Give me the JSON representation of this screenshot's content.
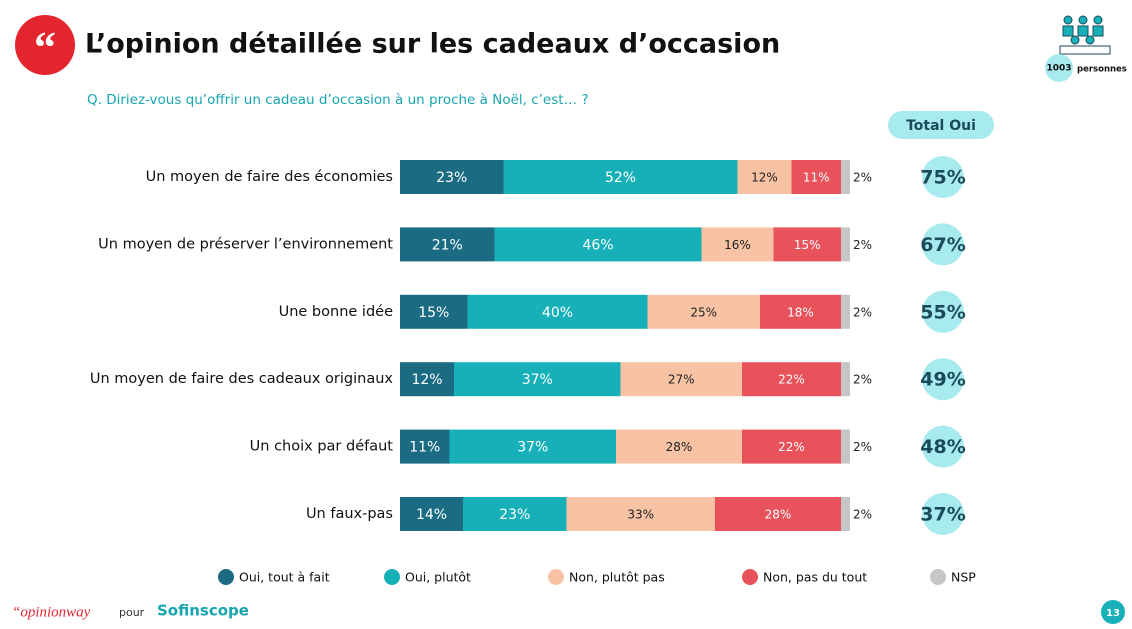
{
  "chart_data": {
    "type": "stacked-bar-horizontal",
    "title": "L’opinion détaillée sur les cadeaux d’occasion",
    "subtitle": "Q. Diriez-vous qu’offrir un cadeau d’occasion à un proche à Noël, c’est… ?",
    "categories": [
      "Un moyen de faire des économies",
      "Un moyen de préserver l’environnement",
      "Une bonne idée",
      "Un moyen de faire des cadeaux originaux",
      "Un choix par défaut",
      "Un faux-pas"
    ],
    "xlim": [
      0,
      100
    ],
    "series": [
      {
        "name": "Oui, tout à fait",
        "color": "#1b6b82",
        "values": [
          23,
          21,
          15,
          12,
          11,
          14
        ],
        "value_labels": [
          "23%",
          "21%",
          "15%",
          "12%",
          "11%",
          "14%"
        ]
      },
      {
        "name": "Oui, plutôt",
        "color": "#17b0b9",
        "values": [
          52,
          46,
          40,
          37,
          37,
          23
        ],
        "value_labels": [
          "52%",
          "46%",
          "40%",
          "37%",
          "37%",
          "23%"
        ]
      },
      {
        "name": "Non, plutôt pas",
        "color": "#f8c3a5",
        "values": [
          12,
          16,
          25,
          27,
          28,
          33
        ],
        "value_labels": [
          "12%",
          "16%",
          "25%",
          "27%",
          "28%",
          "33%"
        ]
      },
      {
        "name": "Non, pas du tout",
        "color": "#e8525b",
        "values": [
          11,
          15,
          18,
          22,
          22,
          28
        ],
        "value_labels": [
          "11%",
          "15%",
          "18%",
          "22%",
          "22%",
          "28%"
        ]
      },
      {
        "name": "NSP",
        "color": "#c6c6c6",
        "values": [
          2,
          2,
          2,
          2,
          2,
          2
        ],
        "value_labels": [
          "2%",
          "2%",
          "2%",
          "2%",
          "2%",
          "2%"
        ]
      }
    ],
    "total": {
      "label": "Total Oui",
      "values": [
        75,
        67,
        55,
        49,
        48,
        37
      ],
      "value_labels": [
        "75%",
        "67%",
        "55%",
        "49%",
        "48%",
        "37%"
      ]
    },
    "legend": "bottom"
  },
  "sample": {
    "count": "1003",
    "label": "personnes"
  },
  "footer": {
    "brand": "“opinionway",
    "for": "pour",
    "partner": "Sofinscope",
    "page": "13"
  }
}
